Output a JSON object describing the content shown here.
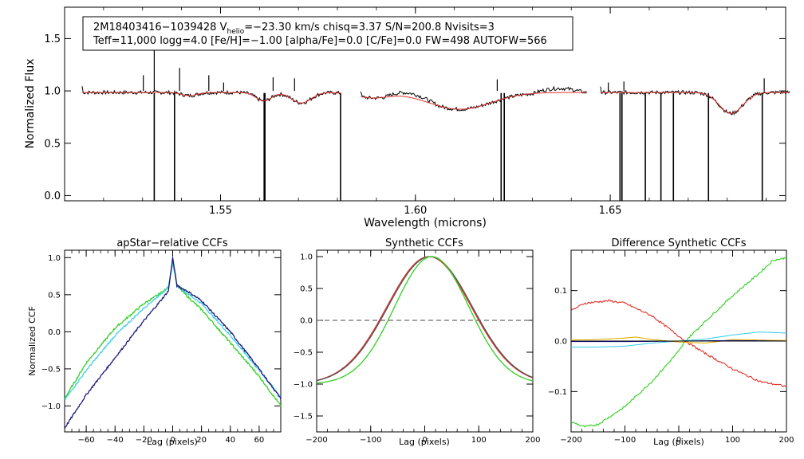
{
  "header": {
    "line1_a": "2M18403416−1039428  V",
    "line1_sub": "helio",
    "line1_b": "=−23.30 km/s  chisq=3.37  S/N=200.8  Nvisits=3",
    "line2": "Teff=11,000 logg=4.0 [Fe/H]=−1.00 [alpha/Fe]=0.0 [C/Fe]=0.0 FW=498 AUTOFW=566"
  },
  "colors": {
    "observed": "#000000",
    "model": "#e0302a",
    "navy": "#1a1a7a",
    "cyan": "#40d0ea",
    "green": "#30d020",
    "red": "#e0302a",
    "yellow": "#e0b000",
    "gray": "#555555",
    "blue": "#1010c0"
  },
  "chart_data": [
    {
      "type": "line",
      "title": "",
      "xlabel": "Wavelength (microns)",
      "ylabel": "Normalized Flux",
      "xlim": [
        1.51,
        1.695
      ],
      "ylim": [
        -0.05,
        1.8
      ],
      "xticks": [
        1.55,
        1.6,
        1.65
      ],
      "xtick_labels": [
        "1.55",
        "1.60",
        "1.65"
      ],
      "yticks": [
        0.0,
        0.5,
        1.0,
        1.5
      ],
      "ytick_labels": [
        "0.0",
        "0.5",
        "1.0",
        "1.5"
      ],
      "chips": [
        [
          1.5145,
          1.581
        ],
        [
          1.586,
          1.644
        ],
        [
          1.6475,
          1.696
        ]
      ],
      "absorption_lines": [
        {
          "center": 1.5707,
          "depth": 0.1,
          "width": 0.0025
        },
        {
          "center": 1.5611,
          "depth": 0.08,
          "width": 0.002
        },
        {
          "center": 1.6114,
          "depth": 0.16,
          "width": 0.008
        },
        {
          "center": 1.681,
          "depth": 0.2,
          "width": 0.003
        },
        {
          "center": 1.542,
          "depth": 0.03,
          "width": 0.002
        },
        {
          "center": 1.5889,
          "depth": 0.05,
          "width": 0.004
        }
      ],
      "dropouts": [
        1.533,
        1.5382,
        1.5612,
        1.5614,
        1.5808,
        1.622,
        1.6228,
        1.6525,
        1.653,
        1.659,
        1.663,
        1.6662,
        1.6752,
        1.689
      ],
      "spikes": [
        {
          "x": 1.533,
          "h": 1.68
        },
        {
          "x": 1.5302,
          "h": 1.15
        },
        {
          "x": 1.5395,
          "h": 1.22
        },
        {
          "x": 1.547,
          "h": 1.15
        },
        {
          "x": 1.5635,
          "h": 1.13
        },
        {
          "x": 1.569,
          "h": 1.12
        },
        {
          "x": 1.5508,
          "h": 1.08
        },
        {
          "x": 1.621,
          "h": 1.11
        },
        {
          "x": 1.6535,
          "h": 1.09
        },
        {
          "x": 1.6895,
          "h": 1.12
        },
        {
          "x": 1.6495,
          "h": 1.08
        }
      ],
      "series": [
        {
          "name": "observed",
          "color": "#000000"
        },
        {
          "name": "model",
          "color": "#e0302a"
        }
      ]
    },
    {
      "type": "line",
      "title": "apStar−relative CCFs",
      "xlabel": "Lag (pixels)",
      "ylabel": "Normalized CCF",
      "xlim": [
        -75,
        75
      ],
      "ylim": [
        -1.35,
        1.1
      ],
      "xticks": [
        -60,
        -40,
        -20,
        0,
        20,
        40,
        60
      ],
      "xtick_labels": [
        "−60",
        "−40",
        "−20",
        "0",
        "20",
        "40",
        "60"
      ],
      "yticks": [
        -1.0,
        -0.5,
        0.0,
        0.5,
        1.0
      ],
      "ytick_labels": [
        "−1.0",
        "−0.5",
        "0.0",
        "0.5",
        "1.0"
      ],
      "series": [
        {
          "name": "green",
          "color": "#30d020",
          "x": [
            -75,
            -60,
            -40,
            -20,
            -10,
            -3,
            0,
            3,
            10,
            20,
            40,
            60,
            75
          ],
          "y": [
            -0.9,
            -0.42,
            0.05,
            0.38,
            0.5,
            0.6,
            0.95,
            0.62,
            0.48,
            0.3,
            -0.15,
            -0.6,
            -1.0
          ]
        },
        {
          "name": "cyan",
          "color": "#40d0ea",
          "x": [
            -75,
            -60,
            -40,
            -20,
            -10,
            -3,
            0,
            3,
            10,
            20,
            40,
            60,
            75
          ],
          "y": [
            -0.92,
            -0.52,
            -0.05,
            0.32,
            0.48,
            0.6,
            0.93,
            0.63,
            0.52,
            0.38,
            -0.05,
            -0.52,
            -0.88
          ]
        },
        {
          "name": "navy",
          "color": "#1a1a7a",
          "x": [
            -75,
            -60,
            -40,
            -20,
            -10,
            -3,
            0,
            3,
            10,
            20,
            40,
            60,
            75
          ],
          "y": [
            -1.3,
            -0.85,
            -0.35,
            0.15,
            0.38,
            0.55,
            1.0,
            0.62,
            0.55,
            0.42,
            0.0,
            -0.5,
            -0.9
          ]
        }
      ]
    },
    {
      "type": "line",
      "title": "Synthetic CCFs",
      "xlabel": "Lag (pixels)",
      "ylabel": "",
      "xlim": [
        -200,
        200
      ],
      "ylim": [
        -1.75,
        1.1
      ],
      "xticks": [
        -200,
        -100,
        0,
        100,
        200
      ],
      "xtick_labels": [
        "−200",
        "−100",
        "0",
        "100",
        "200"
      ],
      "yticks": [
        -1.5,
        -1.0,
        -0.5,
        0.0,
        0.5,
        1.0
      ],
      "ytick_labels": [
        "−1.5",
        "−1.0",
        "−0.5",
        "0.0",
        "0.5",
        "1.0"
      ],
      "reference_line_y": 0.0,
      "series": [
        {
          "name": "red",
          "color": "#e0302a",
          "center": 8,
          "zero_lag": 100,
          "xmin": -200,
          "xmax": 200
        },
        {
          "name": "gray",
          "color": "#555555",
          "center": 10,
          "zero_lag": 102,
          "xmin": -200,
          "xmax": 200
        },
        {
          "name": "green",
          "color": "#30d020",
          "center": 13,
          "zero_lag": 94,
          "xmin": -200,
          "xmax": 200
        }
      ]
    },
    {
      "type": "line",
      "title": "Difference Synthetic CCFs",
      "xlabel": "Lag (pixels)",
      "ylabel": "",
      "xlim": [
        -200,
        200
      ],
      "ylim": [
        -0.18,
        0.18
      ],
      "xticks": [
        -200,
        -100,
        0,
        100,
        200
      ],
      "xtick_labels": [
        "−200",
        "−100",
        "0",
        "100",
        "200"
      ],
      "yticks": [
        -0.1,
        0.0,
        0.1
      ],
      "ytick_labels": [
        "−0.1",
        "0.0",
        "0.1"
      ],
      "series": [
        {
          "name": "green",
          "color": "#30d020",
          "x": [
            -200,
            -175,
            -150,
            -100,
            -50,
            0,
            12,
            50,
            100,
            150,
            175,
            200
          ],
          "y": [
            -0.16,
            -0.17,
            -0.165,
            -0.13,
            -0.08,
            -0.02,
            0.0,
            0.04,
            0.09,
            0.135,
            0.16,
            0.165
          ]
        },
        {
          "name": "red",
          "color": "#e0302a",
          "x": [
            -200,
            -175,
            -130,
            -100,
            -50,
            0,
            12,
            50,
            100,
            150,
            200
          ],
          "y": [
            0.06,
            0.075,
            0.08,
            0.075,
            0.05,
            0.01,
            0.0,
            -0.025,
            -0.055,
            -0.08,
            -0.09
          ]
        },
        {
          "name": "cyan",
          "color": "#40d0ea",
          "x": [
            -200,
            -150,
            -100,
            -50,
            0,
            50,
            100,
            150,
            200
          ],
          "y": [
            -0.012,
            -0.012,
            -0.01,
            -0.004,
            0.0,
            0.004,
            0.012,
            0.018,
            0.016
          ]
        },
        {
          "name": "yellow",
          "color": "#e0b000",
          "x": [
            -200,
            -150,
            -100,
            -80,
            -50,
            0,
            50,
            100,
            200
          ],
          "y": [
            0.002,
            0.003,
            0.006,
            0.008,
            0.003,
            -0.002,
            -0.004,
            0.003,
            0.001
          ]
        },
        {
          "name": "blue",
          "color": "#1010c0",
          "x": [
            -200,
            -100,
            0,
            100,
            200
          ],
          "y": [
            -0.001,
            -0.001,
            0.0,
            0.001,
            0.0
          ]
        },
        {
          "name": "black",
          "color": "#000000",
          "x": [
            -200,
            200
          ],
          "y": [
            0.0,
            0.0
          ]
        }
      ]
    }
  ]
}
